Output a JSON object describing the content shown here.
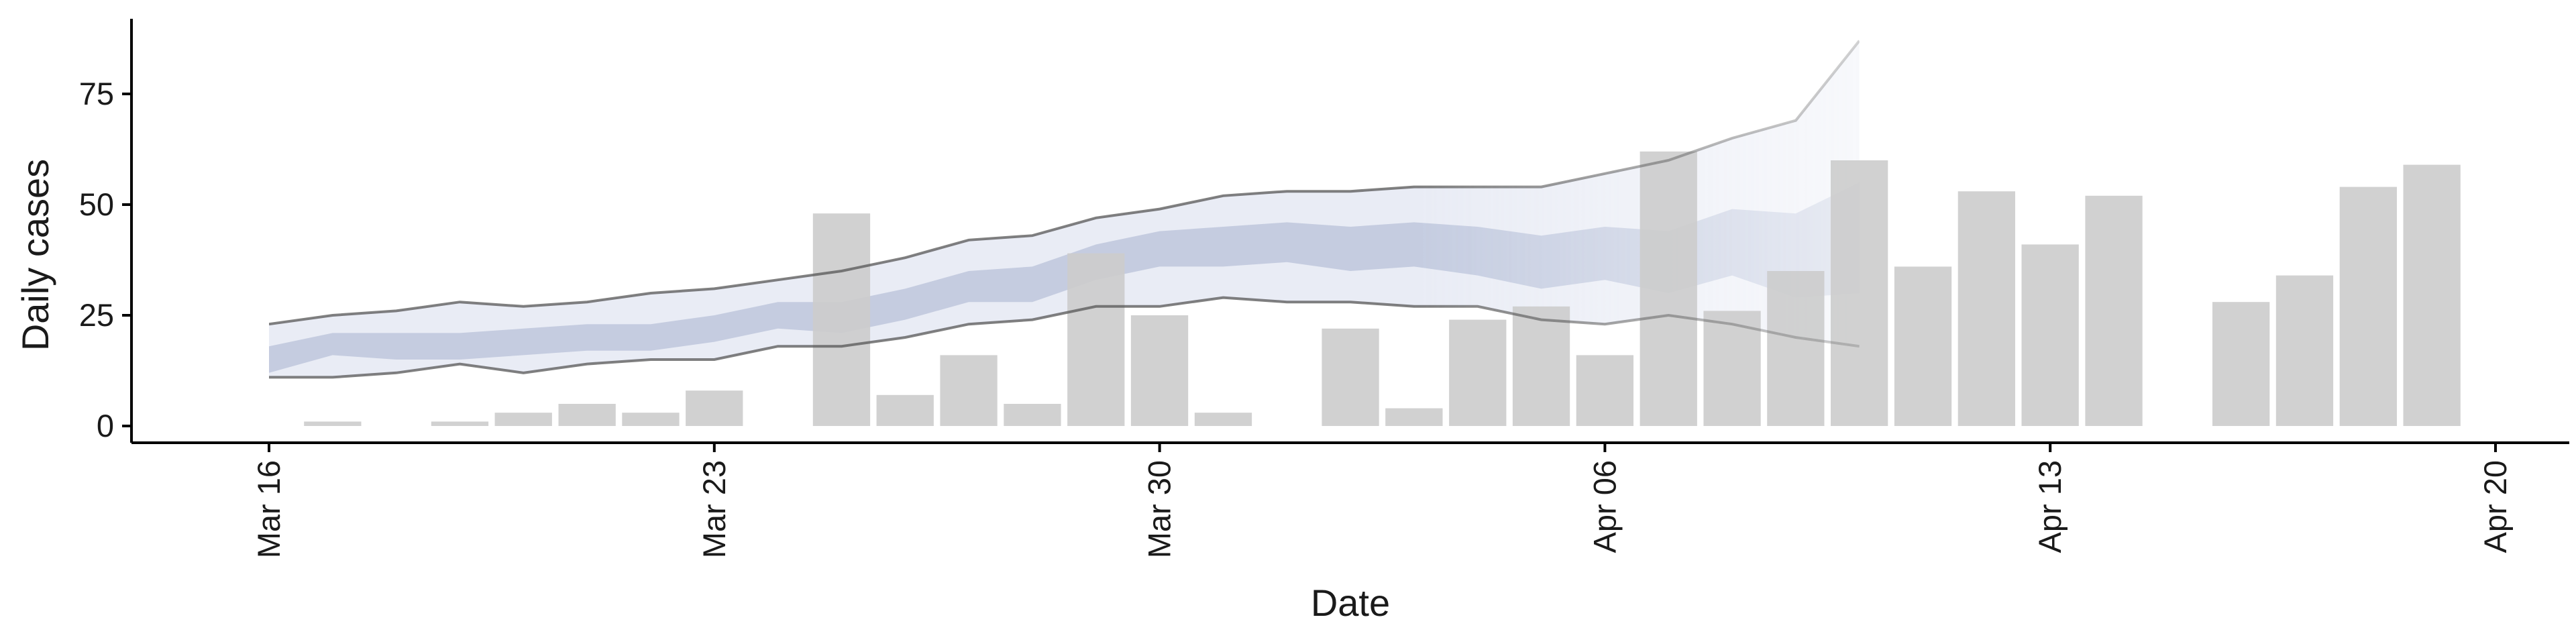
{
  "chart_data": {
    "type": "bar",
    "title": "",
    "xlabel": "Date",
    "ylabel": "Daily cases",
    "xlim": [
      "2020-03-16",
      "2020-04-20"
    ],
    "ylim": [
      -4,
      93
    ],
    "x_ticks": [
      "2020-03-16",
      "2020-03-23",
      "2020-03-30",
      "2020-04-06",
      "2020-04-13",
      "2020-04-20"
    ],
    "x_tick_labels": [
      "Mar 16",
      "Mar 23",
      "Mar 30",
      "Apr 06",
      "Apr 13",
      "Apr 20"
    ],
    "y_ticks": [
      0,
      25,
      50,
      75
    ],
    "y_tick_labels": [
      "0",
      "25",
      "50",
      "75"
    ],
    "grid": false,
    "legend": "none",
    "colors": {
      "bars": "#cccccc",
      "outer_band": "#c8cfe6",
      "inner_band": "#9aa6c8",
      "bound_lines": "#555555",
      "axis": "#000000"
    },
    "bars": {
      "dates": [
        "2020-03-17",
        "2020-03-19",
        "2020-03-20",
        "2020-03-21",
        "2020-03-22",
        "2020-03-23",
        "2020-03-25",
        "2020-03-26",
        "2020-03-27",
        "2020-03-28",
        "2020-03-29",
        "2020-03-30",
        "2020-03-31",
        "2020-04-02",
        "2020-04-03",
        "2020-04-04",
        "2020-04-05",
        "2020-04-06",
        "2020-04-07",
        "2020-04-08",
        "2020-04-09",
        "2020-04-10",
        "2020-04-11",
        "2020-04-12",
        "2020-04-13",
        "2020-04-14",
        "2020-04-16",
        "2020-04-17",
        "2020-04-18",
        "2020-04-19"
      ],
      "values": [
        1,
        1,
        3,
        5,
        3,
        8,
        48,
        7,
        16,
        5,
        39,
        25,
        3,
        22,
        4,
        24,
        27,
        16,
        62,
        26,
        35,
        60,
        36,
        53,
        41,
        52,
        28,
        34,
        54,
        59
      ]
    },
    "bands": {
      "dates": [
        "2020-03-16",
        "2020-03-17",
        "2020-03-18",
        "2020-03-19",
        "2020-03-20",
        "2020-03-21",
        "2020-03-22",
        "2020-03-23",
        "2020-03-24",
        "2020-03-25",
        "2020-03-26",
        "2020-03-27",
        "2020-03-28",
        "2020-03-29",
        "2020-03-30",
        "2020-03-31",
        "2020-04-01",
        "2020-04-02",
        "2020-04-03",
        "2020-04-04",
        "2020-04-05",
        "2020-04-06",
        "2020-04-07",
        "2020-04-08",
        "2020-04-09",
        "2020-04-10"
      ],
      "outer_upper": [
        23,
        25,
        26,
        28,
        27,
        28,
        30,
        31,
        33,
        35,
        38,
        42,
        43,
        47,
        49,
        52,
        53,
        53,
        54,
        54,
        54,
        57,
        60,
        65,
        69,
        87
      ],
      "outer_lower": [
        11,
        11,
        12,
        14,
        12,
        14,
        15,
        15,
        18,
        18,
        20,
        23,
        24,
        27,
        27,
        29,
        28,
        28,
        27,
        27,
        24,
        23,
        25,
        23,
        20,
        18
      ],
      "inner_upper": [
        18,
        21,
        21,
        21,
        22,
        23,
        23,
        25,
        28,
        28,
        31,
        35,
        36,
        41,
        44,
        45,
        46,
        45,
        46,
        45,
        43,
        45,
        44,
        49,
        48,
        55
      ],
      "inner_lower": [
        12,
        16,
        15,
        15,
        16,
        17,
        17,
        19,
        22,
        21,
        24,
        28,
        28,
        33,
        36,
        36,
        37,
        35,
        36,
        34,
        31,
        33,
        30,
        34,
        29,
        30
      ]
    }
  }
}
